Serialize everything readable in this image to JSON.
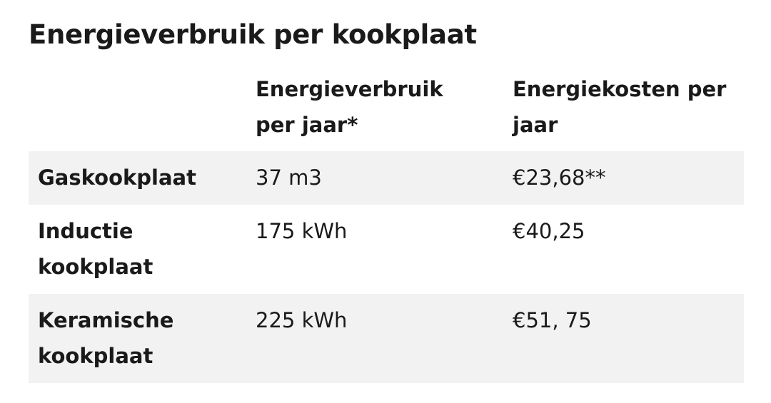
{
  "title": "Energieverbruik per kookplaat",
  "table": {
    "header": [
      "Energieverbruik per jaar*",
      "Energiekosten per jaar"
    ],
    "rows": [
      [
        "Gaskookplaat",
        "37 m3",
        "€23,68**"
      ],
      [
        "Inductie kookplaat",
        "175 kWh",
        "€40,25"
      ],
      [
        "Keramische kookplaat",
        "225 kWh",
        "€51, 75"
      ]
    ]
  }
}
